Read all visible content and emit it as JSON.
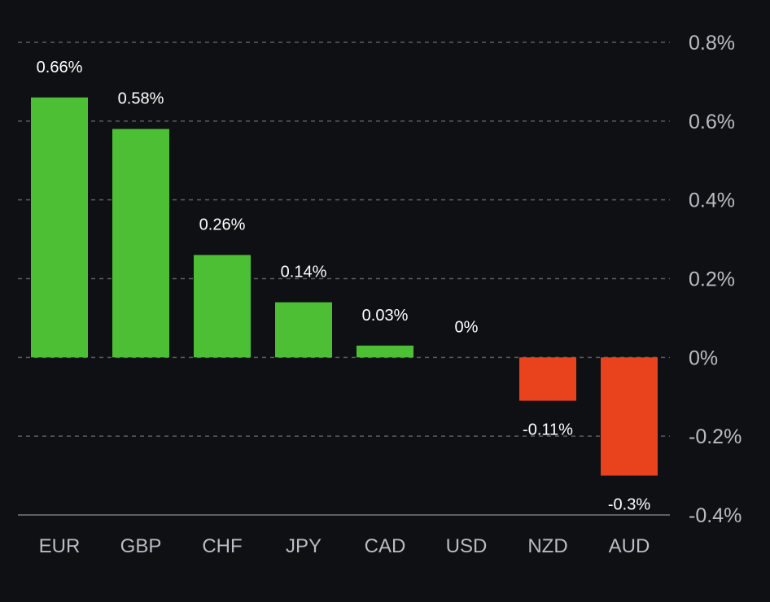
{
  "chart_data": {
    "type": "bar",
    "title": "",
    "xlabel": "",
    "ylabel": "",
    "categories": [
      "EUR",
      "GBP",
      "CHF",
      "JPY",
      "CAD",
      "USD",
      "NZD",
      "AUD"
    ],
    "values": [
      0.66,
      0.58,
      0.26,
      0.14,
      0.03,
      0,
      -0.11,
      -0.3
    ],
    "data_labels": [
      "0.66%",
      "0.58%",
      "0.26%",
      "0.14%",
      "0.03%",
      "0%",
      "-0.11%",
      "-0.3%"
    ],
    "ylim": [
      -0.4,
      0.8
    ],
    "yticks": [
      0.8,
      0.6,
      0.4,
      0.2,
      0,
      -0.2,
      -0.4
    ],
    "ytick_labels": [
      "0.8%",
      "0.6%",
      "0.4%",
      "0.2%",
      "0%",
      "-0.2%",
      "-0.4%"
    ],
    "y_axis_side": "right",
    "grid": true,
    "legend": "none",
    "colors": {
      "positive": "#4cbf35",
      "negative": "#e8431c",
      "background": "#0f1013",
      "grid": "#5a5c62",
      "axis": "#5e6066"
    }
  }
}
